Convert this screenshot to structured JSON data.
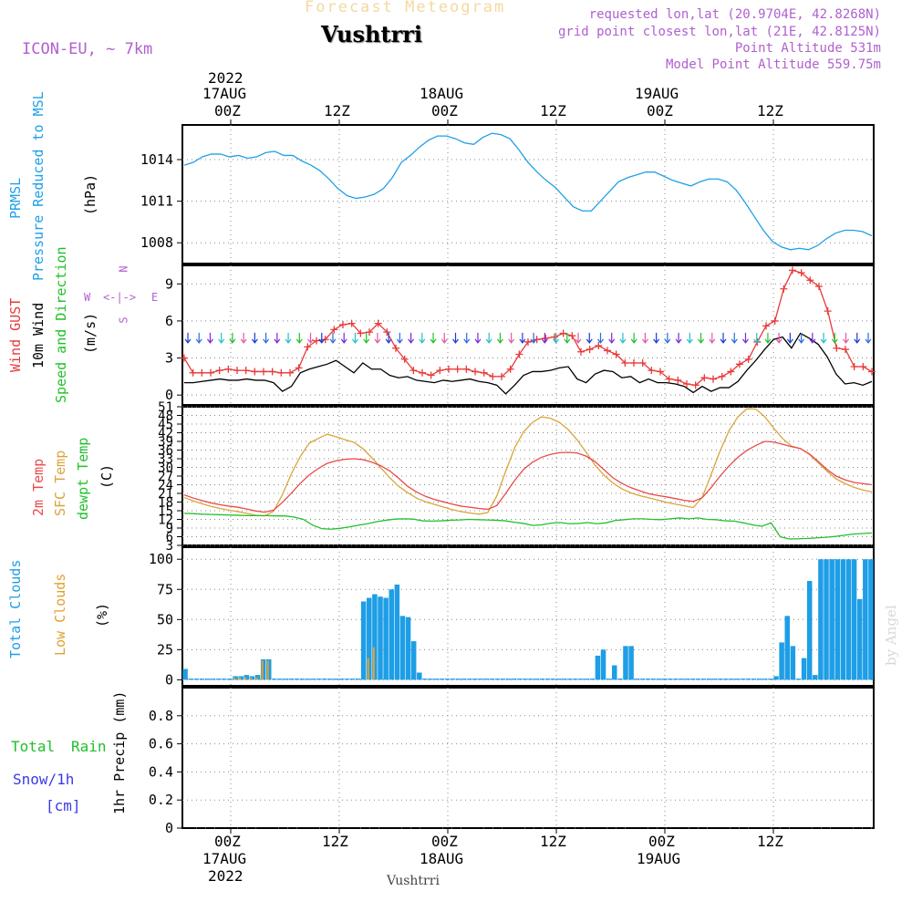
{
  "header": {
    "product_title": "Forecast Meteogram",
    "location": "Vushtrri",
    "model": "ICON-EU, ~ 7km",
    "requested": "requested lon,lat (20.9704E, 42.8268N)",
    "grid_point": "grid point closest lon,lat (21E, 42.8125N)",
    "point_altitude": "Point Altitude 531m",
    "model_altitude": "Model Point Altitude 559.75m",
    "footer_location": "Vushtrri",
    "credit": "by Angel"
  },
  "colors": {
    "pressure": "#1ea0e6",
    "gust": "#e83a3a",
    "wind": "#000000",
    "temp2m": "#e84a4a",
    "sfc_temp": "#d9a53a",
    "dewpoint": "#22c02a",
    "total_clouds": "#1e9ee6",
    "low_clouds": "#e0a030",
    "rain": "#22c02a",
    "snow": "#3a3ae6",
    "purple": "#b060d0"
  },
  "time_axis": {
    "top_ticks": [
      {
        "label": "00Z",
        "day": "17AUG",
        "year": "2022"
      },
      {
        "label": "12Z",
        "day": "",
        "year": ""
      },
      {
        "label": "00Z",
        "day": "18AUG",
        "year": ""
      },
      {
        "label": "12Z",
        "day": "",
        "year": ""
      },
      {
        "label": "00Z",
        "day": "19AUG",
        "year": ""
      },
      {
        "label": "12Z",
        "day": "",
        "year": ""
      }
    ]
  },
  "compass": {
    "n": "N",
    "s": "S",
    "w": "W",
    "e": "E",
    "arrows": "<-|->"
  },
  "panel_labels": {
    "pressure_a": "PRMSL",
    "pressure_b": "Pressure Reduced to MSL",
    "pressure_unit": "(hPa)",
    "gust": "Wind GUST",
    "wind": "10m Wind",
    "wind_dir": "Speed and Direction",
    "wind_unit": "(m/s)",
    "t2m": "2m Temp",
    "tsfc": "SFC Temp",
    "tdew": "dewpt Temp",
    "temp_unit": "(C)",
    "total_clouds": "Total Clouds",
    "low_clouds": "Low Clouds",
    "clouds_unit": "(%)",
    "rain_a": "Total",
    "rain_b": "Rain",
    "snow_a": "Snow/1h",
    "snow_b": "[cm]",
    "precip_unit": "1hr Precip (mm)"
  },
  "chart_data": [
    {
      "type": "line",
      "ylabel": "Pressure Reduced to MSL (hPa)",
      "ylim": [
        1006.5,
        1016.5
      ],
      "yticks": [
        1008,
        1011,
        1014
      ],
      "series": [
        {
          "name": "PRMSL",
          "values": [
            1013.6,
            1013.8,
            1014.2,
            1014.4,
            1014.4,
            1014.2,
            1014.3,
            1014.1,
            1014.2,
            1014.5,
            1014.6,
            1014.3,
            1014.3,
            1013.9,
            1013.6,
            1013.2,
            1012.6,
            1011.9,
            1011.4,
            1011.2,
            1011.3,
            1011.5,
            1011.9,
            1012.7,
            1013.8,
            1014.3,
            1014.9,
            1015.4,
            1015.7,
            1015.7,
            1015.5,
            1015.2,
            1015.1,
            1015.6,
            1015.9,
            1015.8,
            1015.5,
            1014.7,
            1013.8,
            1013.1,
            1012.5,
            1012.0,
            1011.3,
            1010.6,
            1010.3,
            1010.3,
            1011.0,
            1011.7,
            1012.4,
            1012.7,
            1012.9,
            1013.1,
            1013.1,
            1012.8,
            1012.5,
            1012.3,
            1012.1,
            1012.4,
            1012.6,
            1012.6,
            1012.4,
            1011.8,
            1010.9,
            1009.9,
            1008.9,
            1008.1,
            1007.7,
            1007.5,
            1007.6,
            1007.5,
            1007.8,
            1008.3,
            1008.7,
            1008.9,
            1008.9,
            1008.8,
            1008.5
          ]
        }
      ]
    },
    {
      "type": "line",
      "ylabel": "Wind (m/s)",
      "ylim": [
        -0.8,
        10.5
      ],
      "yticks": [
        0,
        3,
        6,
        9
      ],
      "series": [
        {
          "name": "Wind GUST",
          "values": [
            3.0,
            1.8,
            1.8,
            1.8,
            2.0,
            2.1,
            2.0,
            2.0,
            1.9,
            1.9,
            1.9,
            1.8,
            1.8,
            2.2,
            3.9,
            4.4,
            4.5,
            5.3,
            5.7,
            5.8,
            5.0,
            5.1,
            5.8,
            5.1,
            3.8,
            2.9,
            2.0,
            1.8,
            1.6,
            2.0,
            2.1,
            2.1,
            2.1,
            1.9,
            1.8,
            1.5,
            1.5,
            2.1,
            3.3,
            4.3,
            4.5,
            4.6,
            4.7,
            5.0,
            4.8,
            3.5,
            3.7,
            4.0,
            3.6,
            3.3,
            2.6,
            2.6,
            2.6,
            2.0,
            1.9,
            1.3,
            1.2,
            0.9,
            0.8,
            1.4,
            1.3,
            1.5,
            1.9,
            2.5,
            2.9,
            4.3,
            5.6,
            6.0,
            8.6,
            10.1,
            9.9,
            9.3,
            8.8,
            6.8,
            3.8,
            3.7,
            2.3,
            2.3,
            1.9
          ]
        },
        {
          "name": "10m Wind",
          "values": [
            1.0,
            1.0,
            1.1,
            1.2,
            1.3,
            1.2,
            1.2,
            1.3,
            1.2,
            1.2,
            1.0,
            0.3,
            0.7,
            1.8,
            2.1,
            2.3,
            2.5,
            2.8,
            2.3,
            1.8,
            2.6,
            2.1,
            2.1,
            1.6,
            1.4,
            1.5,
            1.2,
            1.1,
            1.0,
            1.2,
            1.1,
            1.2,
            1.3,
            1.1,
            1.0,
            0.8,
            0.1,
            0.8,
            1.6,
            1.9,
            1.9,
            2.0,
            2.2,
            2.3,
            1.3,
            1.0,
            1.7,
            2.0,
            1.9,
            1.4,
            1.5,
            1.0,
            1.3,
            1.0,
            1.0,
            0.9,
            0.7,
            0.2,
            0.7,
            0.3,
            0.6,
            0.6,
            1.1,
            2.0,
            2.8,
            3.7,
            4.5,
            4.7,
            3.8,
            5.0,
            4.6,
            4.1,
            3.1,
            1.7,
            0.9,
            1.0,
            0.8,
            1.1
          ]
        }
      ],
      "wind_arrows": {
        "rows": "small direction arrows drawn near 5 m/s"
      }
    },
    {
      "type": "line",
      "ylabel": "Temp (C)",
      "ylim": [
        3,
        51
      ],
      "yticks": [
        3,
        6,
        9,
        12,
        15,
        18,
        21,
        24,
        27,
        30,
        33,
        36,
        39,
        42,
        45,
        48,
        51
      ],
      "series": [
        {
          "name": "2m Temp",
          "values": [
            20.5,
            19.4,
            18.5,
            17.7,
            17.1,
            16.6,
            16.2,
            15.6,
            14.9,
            14.5,
            15.2,
            17.9,
            21.1,
            24.5,
            27.4,
            29.6,
            31.4,
            32.3,
            32.8,
            33.0,
            32.7,
            31.8,
            30.6,
            28.8,
            26.3,
            23.5,
            21.5,
            20.0,
            18.9,
            18.1,
            17.3,
            16.6,
            16.2,
            15.8,
            15.5,
            16.8,
            21.0,
            25.5,
            29.3,
            31.8,
            33.5,
            34.5,
            35.1,
            35.2,
            35.0,
            33.9,
            32.0,
            29.2,
            26.4,
            24.5,
            23.0,
            21.9,
            20.9,
            20.3,
            19.8,
            19.2,
            18.6,
            18.2,
            19.5,
            23.0,
            27.0,
            30.5,
            33.5,
            35.9,
            37.6,
            39.0,
            38.8,
            38.0,
            37.2,
            36.5,
            34.7,
            32.0,
            29.2,
            27.0,
            25.7,
            24.8,
            24.4,
            24.0
          ]
        },
        {
          "name": "SFC Temp",
          "values": [
            19.6,
            18.4,
            17.4,
            16.5,
            15.8,
            15.2,
            14.7,
            14.1,
            13.4,
            13.2,
            14.8,
            20.6,
            27.8,
            33.8,
            38.4,
            40.0,
            41.5,
            40.6,
            39.6,
            38.7,
            36.5,
            33.4,
            29.9,
            26.5,
            23.5,
            21.3,
            19.4,
            18.1,
            17.2,
            16.3,
            15.4,
            14.7,
            14.2,
            13.8,
            14.4,
            20.1,
            28.7,
            36.8,
            42.3,
            45.6,
            47.5,
            47.0,
            45.6,
            43.1,
            39.5,
            35.3,
            30.8,
            27.3,
            24.6,
            22.6,
            21.2,
            20.2,
            19.5,
            18.7,
            17.9,
            17.3,
            16.7,
            16.1,
            19.6,
            27.5,
            35.7,
            42.7,
            47.5,
            50.3,
            50.2,
            47.6,
            43.6,
            40.0,
            37.4,
            36.5,
            34.5,
            31.6,
            28.6,
            26.0,
            24.4,
            23.1,
            22.2,
            21.5
          ]
        },
        {
          "name": "dewpt Temp",
          "values": [
            14.1,
            14.0,
            13.8,
            13.7,
            13.6,
            13.5,
            13.4,
            13.3,
            13.3,
            13.3,
            13.2,
            13.2,
            12.8,
            12.0,
            10.0,
            8.8,
            8.6,
            8.9,
            9.4,
            10.0,
            10.5,
            11.2,
            11.7,
            12.1,
            12.2,
            12.1,
            11.5,
            11.4,
            11.5,
            11.7,
            11.8,
            12.0,
            11.9,
            11.8,
            11.7,
            11.5,
            11.0,
            10.6,
            9.9,
            10.1,
            10.7,
            10.9,
            10.5,
            10.6,
            10.9,
            10.5,
            10.8,
            11.6,
            11.9,
            12.2,
            12.2,
            12.0,
            11.9,
            12.2,
            12.5,
            12.2,
            12.5,
            12.0,
            11.9,
            11.5,
            11.4,
            10.8,
            10.1,
            9.6,
            10.8,
            6.0,
            5.2,
            5.3,
            5.4,
            5.6,
            5.8,
            6.1,
            6.5,
            6.9,
            7.1,
            7.3
          ]
        }
      ]
    },
    {
      "type": "bar",
      "ylabel": "Clouds (%)",
      "ylim": [
        -5,
        110
      ],
      "yticks": [
        0,
        25,
        50,
        75,
        100
      ],
      "series": [
        {
          "name": "Total Clouds",
          "values": [
            9,
            1,
            1,
            1,
            1,
            1,
            1,
            1,
            1,
            3,
            3,
            4,
            3,
            4,
            17,
            17,
            1,
            1,
            1,
            1,
            1,
            1,
            1,
            1,
            1,
            1,
            1,
            1,
            1,
            1,
            1,
            1,
            65,
            68,
            71,
            69,
            68,
            75,
            79,
            53,
            52,
            32,
            6,
            1,
            1,
            1,
            1,
            1,
            1,
            1,
            1,
            1,
            1,
            1,
            1,
            1,
            1,
            1,
            1,
            1,
            1,
            1,
            1,
            1,
            1,
            1,
            1,
            1,
            1,
            1,
            1,
            1,
            1,
            1,
            20,
            25,
            1,
            12,
            1,
            28,
            28,
            1,
            1,
            1,
            1,
            1,
            1,
            1,
            1,
            1,
            1,
            1,
            1,
            1,
            1,
            1,
            1,
            1,
            1,
            1,
            1,
            1,
            1,
            1,
            1,
            1,
            3,
            31,
            53,
            28,
            1,
            18,
            82,
            4,
            100,
            100,
            100,
            100,
            100,
            100,
            100,
            67,
            100,
            100
          ]
        },
        {
          "name": "Low Clouds",
          "values": [
            0,
            0,
            0,
            0,
            0,
            0,
            0,
            0,
            0,
            2,
            2,
            2,
            2,
            2,
            16,
            16,
            0,
            0,
            0,
            0,
            0,
            0,
            0,
            0,
            0,
            0,
            0,
            0,
            0,
            0,
            0,
            0,
            0,
            18,
            27,
            0,
            0,
            0,
            0,
            0,
            0,
            0,
            0,
            0,
            0,
            0,
            0,
            0,
            0,
            0,
            0,
            0,
            0,
            0,
            0,
            0,
            0,
            0,
            0,
            0,
            0,
            0,
            0,
            0,
            0,
            0,
            0,
            0,
            0,
            0,
            0,
            0,
            0,
            0,
            0,
            0,
            0,
            0,
            0,
            0,
            0,
            0,
            0,
            0,
            0,
            0,
            0,
            0,
            0,
            0,
            0,
            0,
            0,
            0,
            0,
            0,
            0,
            0,
            0,
            0,
            0,
            0,
            0,
            0,
            0,
            0,
            0,
            0,
            0,
            0,
            0,
            0,
            0,
            0,
            0,
            0,
            0,
            0,
            0,
            0,
            0,
            0,
            0,
            0
          ]
        }
      ]
    },
    {
      "type": "bar",
      "ylabel": "1hr Precip (mm)",
      "ylim": [
        0,
        1.0
      ],
      "yticks": [
        0,
        0.2,
        0.4,
        0.6,
        0.8
      ],
      "series": [
        {
          "name": "Total Rain",
          "values": [
            0,
            0,
            0,
            0,
            0,
            0,
            0,
            0,
            0,
            0,
            0,
            0,
            0,
            0,
            0,
            0,
            0,
            0,
            0,
            0,
            0,
            0,
            0,
            0,
            0,
            0,
            0,
            0,
            0,
            0,
            0,
            0,
            0,
            0,
            0,
            0,
            0,
            0,
            0,
            0,
            0,
            0,
            0,
            0,
            0,
            0,
            0,
            0,
            0,
            0,
            0,
            0,
            0,
            0,
            0,
            0,
            0,
            0,
            0,
            0,
            0,
            0,
            0,
            0,
            0,
            0,
            0,
            0,
            0,
            0,
            0,
            0,
            0,
            0,
            0,
            0,
            0
          ]
        }
      ]
    }
  ]
}
